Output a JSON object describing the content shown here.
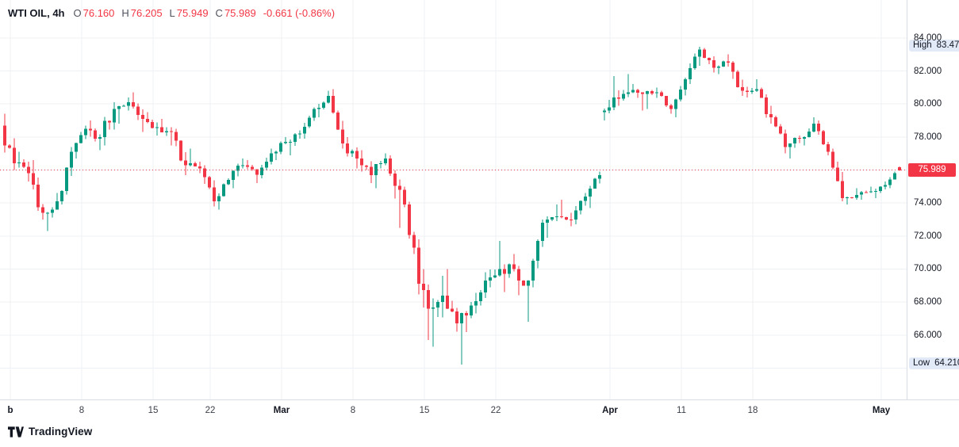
{
  "header": {
    "symbol": "WTI OIL, 4h",
    "ohlc": [
      {
        "label": "O",
        "value": "76.160"
      },
      {
        "label": "H",
        "value": "76.205"
      },
      {
        "label": "L",
        "value": "75.949"
      },
      {
        "label": "C",
        "value": "75.989"
      }
    ],
    "change": "-0.661 (-0.86%)"
  },
  "colors": {
    "up": "#089981",
    "down": "#F23645",
    "grid": "#EDF0F6",
    "last_line": "#F23645",
    "axis_text": "#131722",
    "axis_border": "#D8DCE4",
    "highlow_bg": "#E2EAF8",
    "badge_bg": "#F23645"
  },
  "price_axis": {
    "grid_prices": [
      84,
      82,
      80,
      78,
      76,
      74,
      72,
      70,
      68,
      66,
      64
    ],
    "labels": [
      {
        "text": "84.000",
        "price": 84
      },
      {
        "text": "82.000",
        "price": 82
      },
      {
        "text": "80.000",
        "price": 80
      },
      {
        "text": "78.000",
        "price": 78
      },
      {
        "text": "74.000",
        "price": 74
      },
      {
        "text": "72.000",
        "price": 72
      },
      {
        "text": "70.000",
        "price": 70
      },
      {
        "text": "68.000",
        "price": 68
      },
      {
        "text": "66.000",
        "price": 66
      }
    ],
    "high": {
      "label": "High",
      "value": "83.478",
      "price": 83.478
    },
    "low": {
      "label": "Low",
      "value": "64.210",
      "price": 64.21
    },
    "last": {
      "value": "75.989",
      "price": 75.989
    }
  },
  "time_axis": {
    "ticks": [
      {
        "label": "b",
        "day": 0,
        "major": true
      },
      {
        "label": "8",
        "day": 5
      },
      {
        "label": "15",
        "day": 10
      },
      {
        "label": "22",
        "day": 14
      },
      {
        "label": "Mar",
        "day": 19,
        "major": true
      },
      {
        "label": "8",
        "day": 24
      },
      {
        "label": "15",
        "day": 29
      },
      {
        "label": "22",
        "day": 34
      },
      {
        "label": "Apr",
        "day": 42,
        "major": true
      },
      {
        "label": "11",
        "day": 47
      },
      {
        "label": "18",
        "day": 52
      },
      {
        "label": "May",
        "day": 61,
        "major": true
      }
    ]
  },
  "logo": {
    "text": "TradingView"
  },
  "chart_data": {
    "type": "candlestick",
    "symbol": "WTI OIL",
    "interval": "4h",
    "current": {
      "open": 76.16,
      "high": 76.205,
      "low": 75.949,
      "close": 75.989,
      "change": -0.661,
      "change_pct": -0.86
    },
    "last_price": 75.989,
    "high_marker": 83.478,
    "low_marker": 64.21,
    "grid": true,
    "y_axis": {
      "max_visible": 86.3,
      "min_visible": 62.1,
      "tick_step": 2
    },
    "x_axis": {
      "start": "Feb 1",
      "end": "May 2"
    },
    "columns": [
      "date",
      "open",
      "high",
      "low",
      "close"
    ],
    "daily_candles": [
      [
        "Feb 1",
        78.7,
        79.4,
        76.0,
        76.4
      ],
      [
        "Feb 2",
        76.4,
        77.1,
        75.3,
        75.8
      ],
      [
        "Feb 3",
        75.8,
        76.6,
        73.0,
        73.4
      ],
      [
        "Feb 6",
        73.4,
        74.6,
        72.3,
        74.1
      ],
      [
        "Feb 7",
        74.1,
        77.4,
        73.9,
        77.1
      ],
      [
        "Feb 8",
        77.1,
        78.7,
        76.7,
        78.5
      ],
      [
        "Feb 9",
        78.5,
        79.0,
        77.2,
        78.0
      ],
      [
        "Feb 10",
        78.0,
        80.1,
        77.5,
        79.7
      ],
      [
        "Feb 13",
        79.7,
        80.4,
        78.8,
        80.1
      ],
      [
        "Feb 14",
        80.1,
        80.7,
        78.3,
        79.1
      ],
      [
        "Feb 15",
        79.1,
        79.5,
        78.1,
        78.6
      ],
      [
        "Feb 16",
        78.6,
        79.1,
        77.5,
        78.3
      ],
      [
        "Feb 17",
        78.3,
        78.5,
        75.7,
        76.3
      ],
      [
        "Feb 21",
        76.3,
        77.3,
        75.8,
        76.1
      ],
      [
        "Feb 22",
        76.1,
        76.3,
        73.8,
        74.1
      ],
      [
        "Feb 23",
        74.1,
        75.5,
        73.6,
        75.4
      ],
      [
        "Feb 24",
        75.4,
        76.7,
        74.9,
        76.3
      ],
      [
        "Feb 27",
        76.3,
        76.6,
        75.2,
        75.7
      ],
      [
        "Feb 28",
        75.7,
        77.3,
        75.5,
        77.0
      ],
      [
        "Mar 1",
        77.0,
        78.0,
        76.6,
        77.7
      ],
      [
        "Mar 2",
        77.7,
        78.4,
        76.9,
        78.2
      ],
      [
        "Mar 3",
        78.2,
        79.8,
        77.9,
        79.7
      ],
      [
        "Mar 6",
        79.7,
        80.8,
        79.2,
        80.5
      ],
      [
        "Mar 7",
        80.5,
        80.9,
        77.3,
        77.6
      ],
      [
        "Mar 8",
        77.6,
        78.0,
        76.1,
        76.7
      ],
      [
        "Mar 9",
        76.7,
        77.2,
        75.2,
        75.7
      ],
      [
        "Mar 10",
        75.7,
        77.0,
        74.9,
        76.7
      ],
      [
        "Mar 13",
        76.7,
        76.9,
        72.5,
        74.8
      ],
      [
        "Mar 14",
        74.8,
        75.0,
        70.9,
        71.3
      ],
      [
        "Mar 15",
        71.3,
        71.8,
        65.7,
        67.6
      ],
      [
        "Mar 16",
        67.6,
        69.6,
        65.3,
        68.4
      ],
      [
        "Mar 17",
        68.4,
        70.0,
        66.2,
        66.7
      ],
      [
        "Mar 20",
        66.7,
        68.0,
        64.21,
        67.8
      ],
      [
        "Mar 21",
        67.8,
        69.8,
        67.3,
        69.3
      ],
      [
        "Mar 22",
        69.3,
        71.7,
        68.9,
        70.0
      ],
      [
        "Mar 23",
        70.0,
        70.9,
        68.6,
        70.0
      ],
      [
        "Mar 24",
        70.0,
        70.2,
        66.8,
        69.3
      ],
      [
        "Mar 27",
        69.3,
        73.0,
        68.9,
        72.8
      ],
      [
        "Mar 28",
        72.8,
        73.9,
        71.9,
        73.2
      ],
      [
        "Mar 29",
        73.2,
        74.2,
        72.6,
        73.0
      ],
      [
        "Mar 30",
        73.0,
        74.6,
        72.7,
        74.4
      ],
      [
        "Mar 31",
        74.4,
        75.9,
        73.7,
        75.7
      ],
      [
        "Apr 3",
        79.5,
        81.7,
        79.0,
        80.4
      ],
      [
        "Apr 4",
        80.4,
        81.8,
        79.9,
        80.7
      ],
      [
        "Apr 5",
        80.7,
        81.2,
        79.6,
        80.6
      ],
      [
        "Apr 6",
        80.6,
        81.0,
        79.7,
        80.7
      ],
      [
        "Apr 10",
        80.7,
        80.8,
        79.4,
        79.7
      ],
      [
        "Apr 11",
        79.7,
        81.6,
        79.2,
        81.5
      ],
      [
        "Apr 12",
        81.5,
        83.478,
        81.2,
        83.3
      ],
      [
        "Apr 13",
        83.3,
        83.4,
        81.9,
        82.2
      ],
      [
        "Apr 14",
        82.2,
        83.0,
        81.8,
        82.5
      ],
      [
        "Apr 17",
        82.5,
        82.6,
        80.5,
        80.8
      ],
      [
        "Apr 18",
        80.8,
        81.5,
        80.4,
        80.9
      ],
      [
        "Apr 19",
        80.9,
        81.0,
        78.8,
        79.2
      ],
      [
        "Apr 20",
        79.2,
        79.3,
        77.0,
        77.4
      ],
      [
        "Apr 21",
        77.4,
        78.1,
        76.7,
        77.9
      ],
      [
        "Apr 24",
        77.9,
        79.2,
        77.5,
        78.8
      ],
      [
        "Apr 25",
        78.8,
        79.0,
        76.9,
        77.1
      ],
      [
        "Apr 26",
        77.1,
        77.3,
        74.1,
        74.3
      ],
      [
        "Apr 27",
        74.3,
        74.9,
        73.9,
        74.5
      ],
      [
        "Apr 28",
        74.5,
        75.0,
        74.2,
        74.7
      ],
      [
        "May 1",
        74.7,
        75.3,
        74.3,
        75.1
      ],
      [
        "May 2",
        75.1,
        76.205,
        74.9,
        75.989
      ]
    ]
  }
}
